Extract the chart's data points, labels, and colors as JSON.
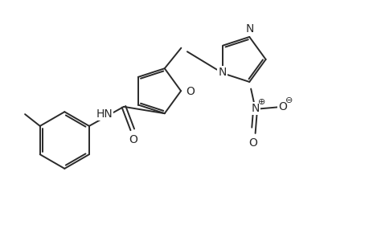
{
  "bg_color": "#ffffff",
  "line_color": "#2a2a2a",
  "line_width": 1.4,
  "font_size": 10,
  "font_size_charge": 8,
  "figsize": [
    4.6,
    3.0
  ],
  "dpi": 100,
  "xlim": [
    0,
    9.2
  ],
  "ylim": [
    0,
    6.0
  ]
}
